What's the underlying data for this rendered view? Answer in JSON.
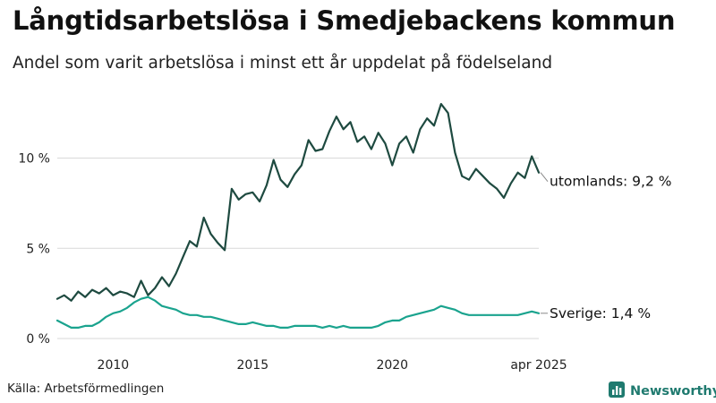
{
  "header": {
    "title": "Långtidsarbetslösa i Smedjebackens kommun",
    "subtitle": "Andel som varit arbetslösa i minst ett år uppdelat på födelseland"
  },
  "footer": {
    "source": "Källa: Arbetsförmedlingen",
    "brand": "Newsworthy"
  },
  "colors": {
    "utomlands": "#1e4a40",
    "sverige": "#1aa38e",
    "grid": "#d9d9d9",
    "brand": "#1f7a6f"
  },
  "icons": {
    "brand_logo": "bar-chart-icon"
  },
  "chart_data": {
    "type": "line",
    "title": "Långtidsarbetslösa i Smedjebackens kommun",
    "subtitle": "Andel som varit arbetslösa i minst ett år uppdelat på födelseland",
    "xlabel": "",
    "ylabel": "",
    "x_range": [
      "2008-01",
      "2025-04"
    ],
    "ylim": [
      0,
      13.8
    ],
    "y_ticks": [
      0,
      5,
      10
    ],
    "y_tick_labels": [
      "0 %",
      "5 %",
      "10 %"
    ],
    "x_ticks": [
      2010,
      2015,
      2020,
      "2025-04"
    ],
    "x_tick_labels": [
      "2010",
      "2015",
      "2020",
      "apr 2025"
    ],
    "grid": true,
    "legend": "end-of-line labels",
    "series": [
      {
        "name": "utomlands",
        "label": "utomlands: 9,2 %",
        "x": [
          "2008-01",
          "2008-04",
          "2008-07",
          "2008-10",
          "2009-01",
          "2009-04",
          "2009-07",
          "2009-10",
          "2010-01",
          "2010-04",
          "2010-07",
          "2010-10",
          "2011-01",
          "2011-04",
          "2011-07",
          "2011-10",
          "2012-01",
          "2012-04",
          "2012-07",
          "2012-10",
          "2013-01",
          "2013-04",
          "2013-07",
          "2013-10",
          "2014-01",
          "2014-04",
          "2014-07",
          "2014-10",
          "2015-01",
          "2015-04",
          "2015-07",
          "2015-10",
          "2016-01",
          "2016-04",
          "2016-07",
          "2016-10",
          "2017-01",
          "2017-04",
          "2017-07",
          "2017-10",
          "2018-01",
          "2018-04",
          "2018-07",
          "2018-10",
          "2019-01",
          "2019-04",
          "2019-07",
          "2019-10",
          "2020-01",
          "2020-04",
          "2020-07",
          "2020-10",
          "2021-01",
          "2021-04",
          "2021-07",
          "2021-10",
          "2022-01",
          "2022-04",
          "2022-07",
          "2022-10",
          "2023-01",
          "2023-04",
          "2023-07",
          "2023-10",
          "2024-01",
          "2024-04",
          "2024-07",
          "2024-10",
          "2025-01",
          "2025-04"
        ],
        "values": [
          2.2,
          2.4,
          2.1,
          2.6,
          2.3,
          2.7,
          2.5,
          2.8,
          2.4,
          2.6,
          2.5,
          2.3,
          3.2,
          2.4,
          2.8,
          3.4,
          2.9,
          3.6,
          4.5,
          5.4,
          5.1,
          6.7,
          5.8,
          5.3,
          4.9,
          8.3,
          7.7,
          8.0,
          8.1,
          7.6,
          8.5,
          9.9,
          8.8,
          8.4,
          9.1,
          9.6,
          11.0,
          10.4,
          10.5,
          11.5,
          12.3,
          11.6,
          12.0,
          10.9,
          11.2,
          10.5,
          11.4,
          10.8,
          9.6,
          10.8,
          11.2,
          10.3,
          11.6,
          12.2,
          11.8,
          13.0,
          12.5,
          10.3,
          9.0,
          8.8,
          9.4,
          9.0,
          8.6,
          8.3,
          7.8,
          8.6,
          9.2,
          8.9,
          10.1,
          9.2
        ]
      },
      {
        "name": "Sverige",
        "label": "Sverige: 1,4 %",
        "x": [
          "2008-01",
          "2008-04",
          "2008-07",
          "2008-10",
          "2009-01",
          "2009-04",
          "2009-07",
          "2009-10",
          "2010-01",
          "2010-04",
          "2010-07",
          "2010-10",
          "2011-01",
          "2011-04",
          "2011-07",
          "2011-10",
          "2012-01",
          "2012-04",
          "2012-07",
          "2012-10",
          "2013-01",
          "2013-04",
          "2013-07",
          "2013-10",
          "2014-01",
          "2014-04",
          "2014-07",
          "2014-10",
          "2015-01",
          "2015-04",
          "2015-07",
          "2015-10",
          "2016-01",
          "2016-04",
          "2016-07",
          "2016-10",
          "2017-01",
          "2017-04",
          "2017-07",
          "2017-10",
          "2018-01",
          "2018-04",
          "2018-07",
          "2018-10",
          "2019-01",
          "2019-04",
          "2019-07",
          "2019-10",
          "2020-01",
          "2020-04",
          "2020-07",
          "2020-10",
          "2021-01",
          "2021-04",
          "2021-07",
          "2021-10",
          "2022-01",
          "2022-04",
          "2022-07",
          "2022-10",
          "2023-01",
          "2023-04",
          "2023-07",
          "2023-10",
          "2024-01",
          "2024-04",
          "2024-07",
          "2024-10",
          "2025-01",
          "2025-04"
        ],
        "values": [
          1.0,
          0.8,
          0.6,
          0.6,
          0.7,
          0.7,
          0.9,
          1.2,
          1.4,
          1.5,
          1.7,
          2.0,
          2.2,
          2.3,
          2.1,
          1.8,
          1.7,
          1.6,
          1.4,
          1.3,
          1.3,
          1.2,
          1.2,
          1.1,
          1.0,
          0.9,
          0.8,
          0.8,
          0.9,
          0.8,
          0.7,
          0.7,
          0.6,
          0.6,
          0.7,
          0.7,
          0.7,
          0.7,
          0.6,
          0.7,
          0.6,
          0.7,
          0.6,
          0.6,
          0.6,
          0.6,
          0.7,
          0.9,
          1.0,
          1.0,
          1.2,
          1.3,
          1.4,
          1.5,
          1.6,
          1.8,
          1.7,
          1.6,
          1.4,
          1.3,
          1.3,
          1.3,
          1.3,
          1.3,
          1.3,
          1.3,
          1.3,
          1.4,
          1.5,
          1.4
        ]
      }
    ]
  }
}
